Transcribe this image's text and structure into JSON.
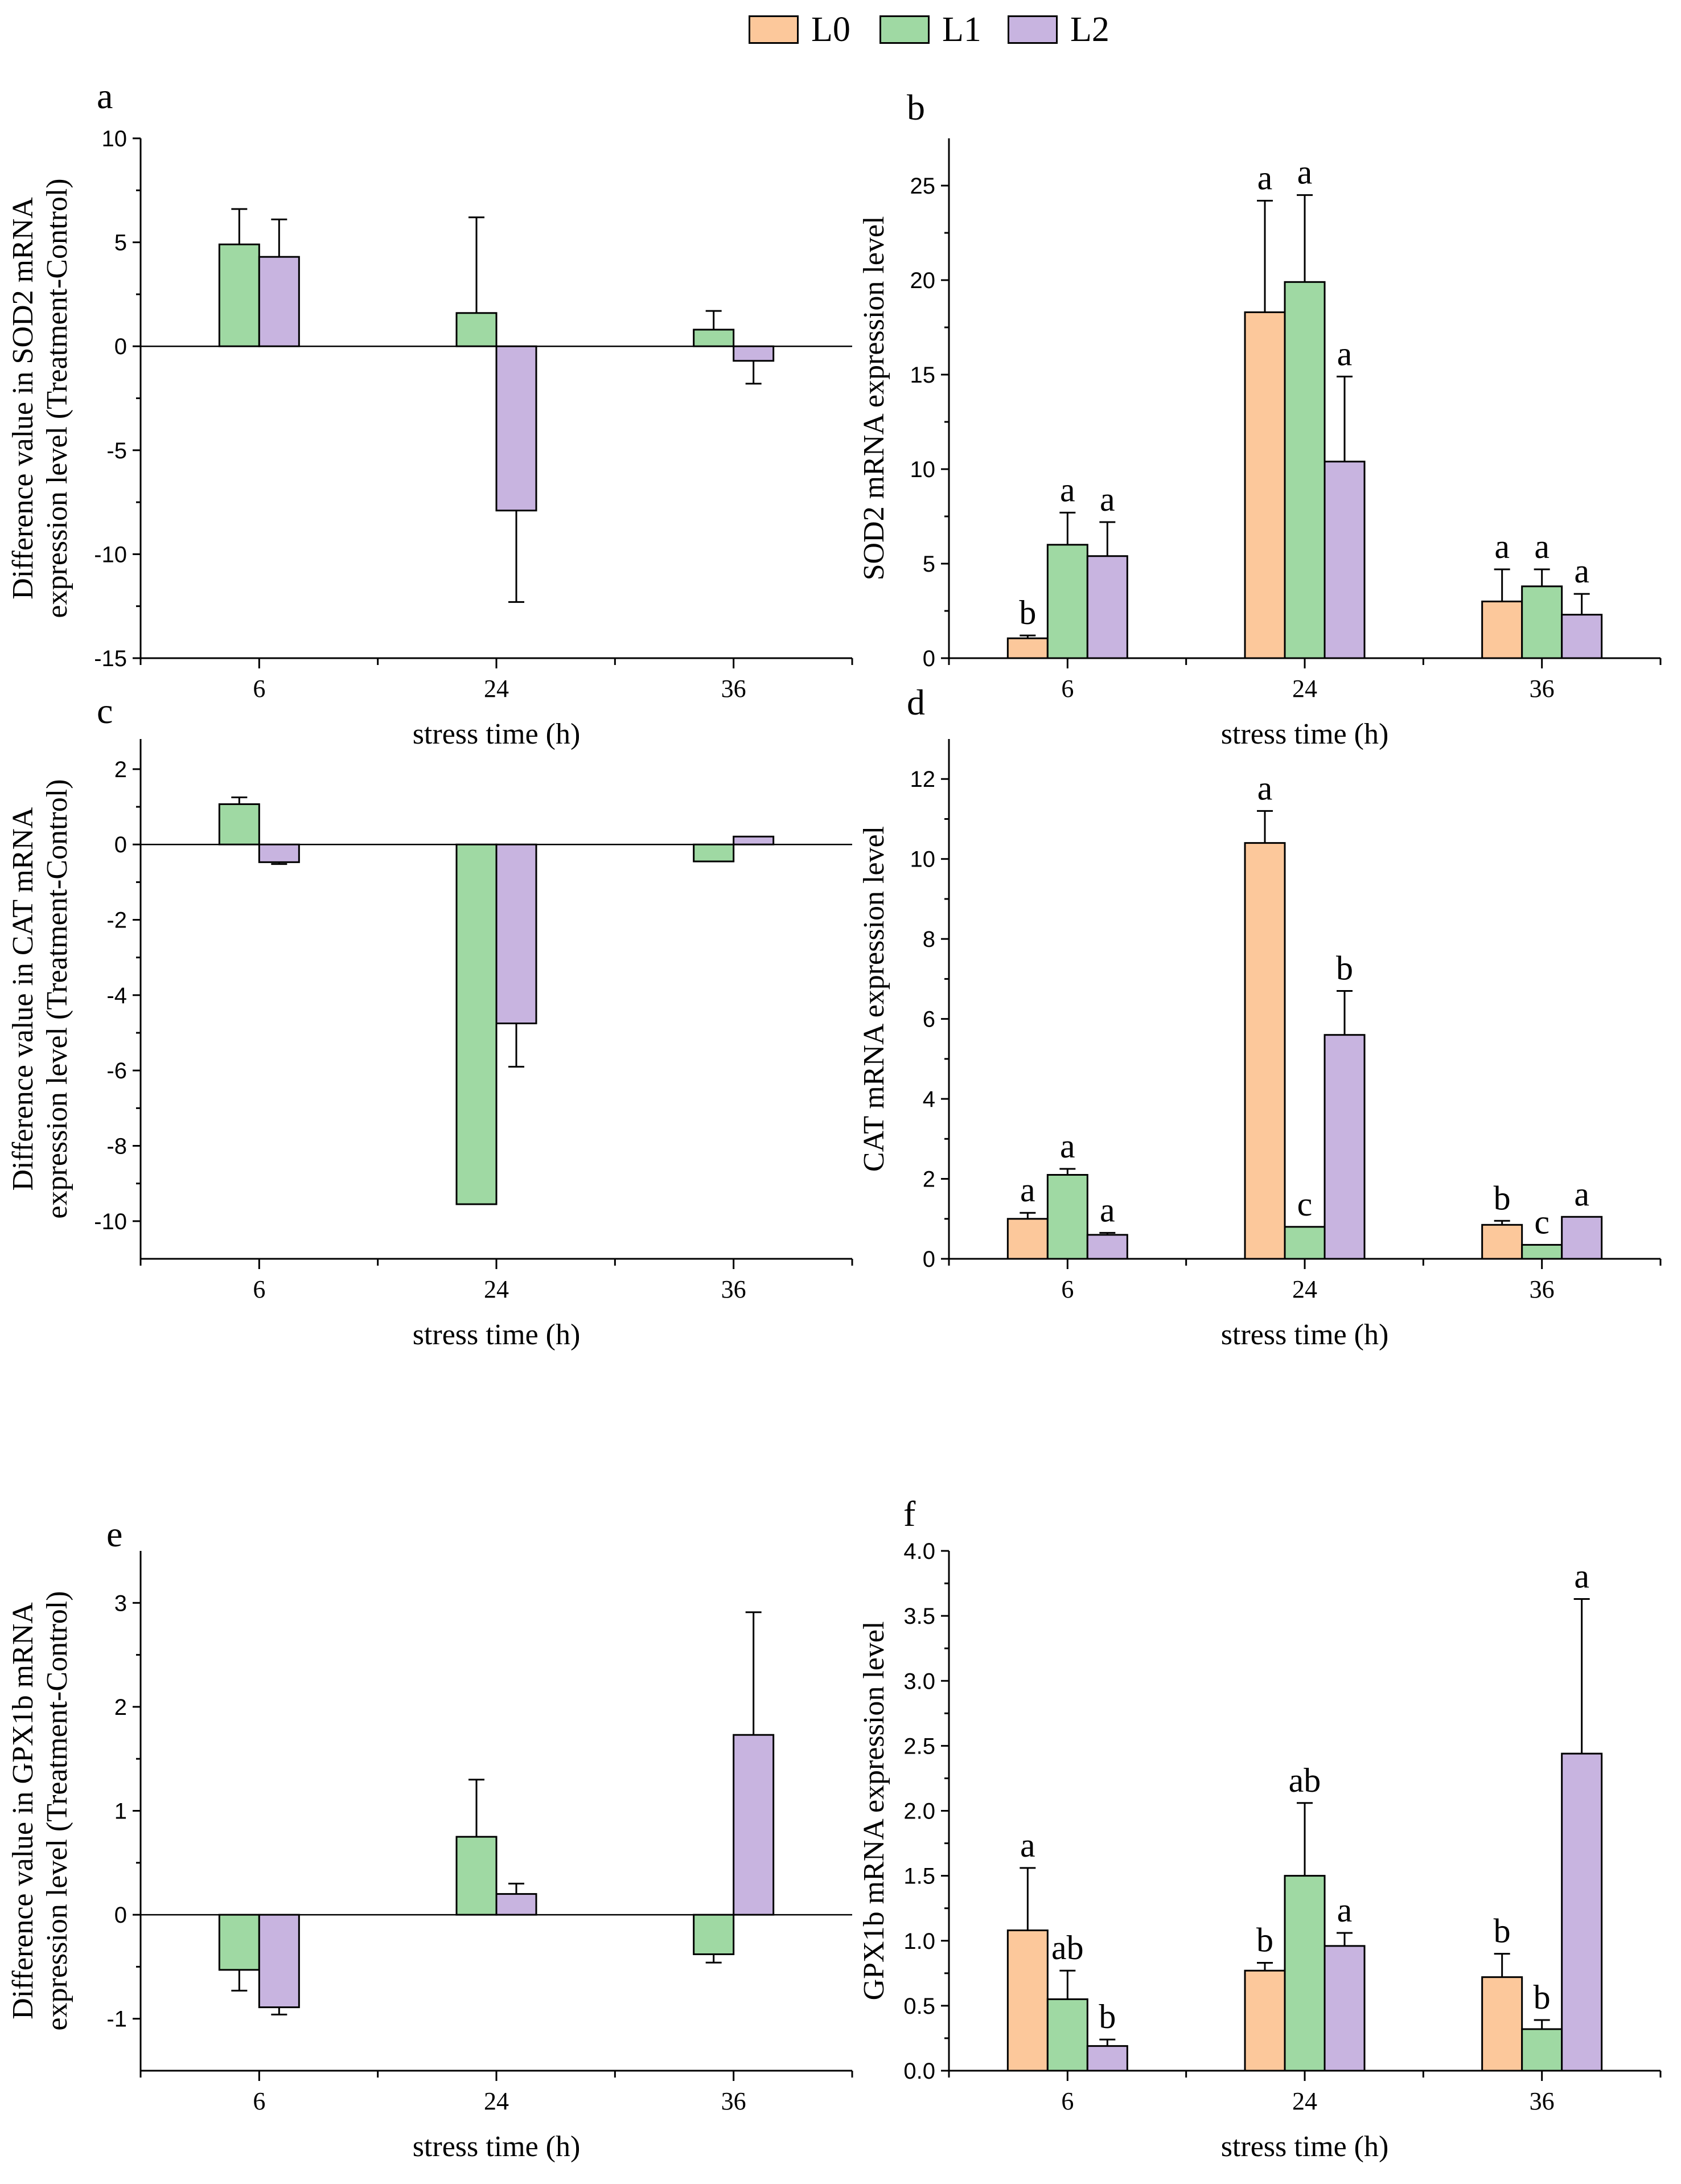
{
  "colors": {
    "L0": "#fcc89b",
    "L1": "#9fd9a3",
    "L2": "#c8b4e0",
    "error": "#000000"
  },
  "legend": [
    {
      "key": "L0",
      "label": "L0"
    },
    {
      "key": "L1",
      "label": "L1"
    },
    {
      "key": "L2",
      "label": "L2"
    }
  ],
  "chart_data": [
    {
      "id": "a",
      "type": "bar",
      "panel_label": "a",
      "ylabel_lines": [
        "Difference value in SOD2 mRNA",
        "expression level (Treatment-Control)"
      ],
      "xlabel": "stress time (h)",
      "categories": [
        "6",
        "24",
        "36"
      ],
      "ylim": [
        -15,
        10
      ],
      "yticks": [
        10,
        5,
        0,
        -5,
        -10,
        -15
      ],
      "ytick_labels": [
        "10",
        "5",
        "0",
        "-5",
        "-10",
        "-15"
      ],
      "zero_line": true,
      "series": [
        {
          "key": "L1",
          "name": "L1",
          "values": [
            4.9,
            1.6,
            0.8
          ],
          "errors": [
            1.7,
            4.6,
            0.9
          ],
          "labels": [
            "",
            "",
            ""
          ]
        },
        {
          "key": "L2",
          "name": "L2",
          "values": [
            4.3,
            -7.9,
            -0.7
          ],
          "errors": [
            1.8,
            4.4,
            1.1
          ],
          "labels": [
            "",
            "",
            ""
          ]
        }
      ]
    },
    {
      "id": "b",
      "type": "bar",
      "panel_label": "b",
      "ylabel_lines": [
        "SOD2 mRNA expression level"
      ],
      "xlabel": "stress time (h)",
      "categories": [
        "6",
        "24",
        "36"
      ],
      "ylim": [
        0,
        27.5
      ],
      "yticks": [
        0,
        5,
        10,
        15,
        20,
        25
      ],
      "ytick_labels": [
        "0",
        "5",
        "10",
        "15",
        "20",
        "25"
      ],
      "zero_line": false,
      "series": [
        {
          "key": "L0",
          "name": "L0",
          "values": [
            1.05,
            18.3,
            3.0
          ],
          "errors": [
            0.15,
            5.9,
            1.7
          ],
          "labels": [
            "b",
            "a",
            "a"
          ]
        },
        {
          "key": "L1",
          "name": "L1",
          "values": [
            6.0,
            19.9,
            3.8
          ],
          "errors": [
            1.7,
            4.6,
            0.9
          ],
          "labels": [
            "a",
            "a",
            "a"
          ]
        },
        {
          "key": "L2",
          "name": "L2",
          "values": [
            5.4,
            10.4,
            2.3
          ],
          "errors": [
            1.8,
            4.5,
            1.1
          ],
          "labels": [
            "a",
            "a",
            "a"
          ]
        }
      ]
    },
    {
      "id": "c",
      "type": "bar",
      "panel_label": "c",
      "ylabel_lines": [
        "Difference value in CAT mRNA",
        "expression level (Treatment-Control)"
      ],
      "xlabel": "stress time (h)",
      "categories": [
        "6",
        "24",
        "36"
      ],
      "ylim": [
        -11,
        2.8
      ],
      "yticks": [
        2,
        0,
        -2,
        -4,
        -6,
        -8,
        -10
      ],
      "ytick_labels": [
        "2",
        "0",
        "-2",
        "-4",
        "-6",
        "-8",
        "-10"
      ],
      "zero_line": true,
      "series": [
        {
          "key": "L1",
          "name": "L1",
          "values": [
            1.07,
            -9.55,
            -0.45
          ],
          "errors": [
            0.18,
            0.0,
            0.0
          ],
          "labels": [
            "",
            "",
            ""
          ]
        },
        {
          "key": "L2",
          "name": "L2",
          "values": [
            -0.47,
            -4.75,
            0.21
          ],
          "errors": [
            0.05,
            1.15,
            0.0
          ],
          "labels": [
            "",
            "",
            ""
          ]
        }
      ]
    },
    {
      "id": "d",
      "type": "bar",
      "panel_label": "d",
      "ylabel_lines": [
        "CAT mRNA expression level"
      ],
      "xlabel": "stress time (h)",
      "categories": [
        "6",
        "24",
        "36"
      ],
      "ylim": [
        0,
        13
      ],
      "yticks": [
        0,
        2,
        4,
        6,
        8,
        10,
        12
      ],
      "ytick_labels": [
        "0",
        "2",
        "4",
        "6",
        "8",
        "10",
        "12"
      ],
      "zero_line": false,
      "series": [
        {
          "key": "L0",
          "name": "L0",
          "values": [
            1.0,
            10.4,
            0.85
          ],
          "errors": [
            0.15,
            0.8,
            0.1
          ],
          "labels": [
            "a",
            "a",
            "b"
          ]
        },
        {
          "key": "L1",
          "name": "L1",
          "values": [
            2.1,
            0.8,
            0.35
          ],
          "errors": [
            0.15,
            0.0,
            0.0
          ],
          "labels": [
            "a",
            "c",
            "c"
          ]
        },
        {
          "key": "L2",
          "name": "L2",
          "values": [
            0.6,
            5.6,
            1.05
          ],
          "errors": [
            0.05,
            1.1,
            0.0
          ],
          "labels": [
            "a",
            "b",
            "a"
          ]
        }
      ]
    },
    {
      "id": "e",
      "type": "bar",
      "panel_label": "e",
      "ylabel_lines": [
        "Difference value in GPX1b mRNA",
        "expression level (Treatment-Control)"
      ],
      "xlabel": "stress time (h)",
      "categories": [
        "6",
        "24",
        "36"
      ],
      "ylim": [
        -1.5,
        3.5
      ],
      "yticks": [
        3,
        2,
        1,
        0,
        -1
      ],
      "ytick_labels": [
        "3",
        "2",
        "1",
        "0",
        "-1"
      ],
      "zero_line": true,
      "series": [
        {
          "key": "L1",
          "name": "L1",
          "values": [
            -0.53,
            0.75,
            -0.38
          ],
          "errors": [
            0.2,
            0.55,
            0.08
          ],
          "labels": [
            "",
            "",
            ""
          ]
        },
        {
          "key": "L2",
          "name": "L2",
          "values": [
            -0.89,
            0.2,
            1.73
          ],
          "errors": [
            0.07,
            0.1,
            1.18
          ],
          "labels": [
            "",
            "",
            ""
          ]
        }
      ]
    },
    {
      "id": "f",
      "type": "bar",
      "panel_label": "f",
      "ylabel_lines": [
        "GPX1b mRNA expression level"
      ],
      "xlabel": "stress time (h)",
      "categories": [
        "6",
        "24",
        "36"
      ],
      "ylim": [
        0,
        4.0
      ],
      "yticks": [
        0,
        0.5,
        1.0,
        1.5,
        2.0,
        2.5,
        3.0,
        3.5,
        4.0
      ],
      "ytick_labels": [
        "0.0",
        "0.5",
        "1.0",
        "1.5",
        "2.0",
        "2.5",
        "3.0",
        "3.5",
        "4.0"
      ],
      "zero_line": false,
      "series": [
        {
          "key": "L0",
          "name": "L0",
          "values": [
            1.08,
            0.77,
            0.72
          ],
          "errors": [
            0.48,
            0.06,
            0.18
          ],
          "labels": [
            "a",
            "b",
            "b"
          ]
        },
        {
          "key": "L1",
          "name": "L1",
          "values": [
            0.55,
            1.5,
            0.32
          ],
          "errors": [
            0.22,
            0.56,
            0.07
          ],
          "labels": [
            "ab",
            "ab",
            "b"
          ]
        },
        {
          "key": "L2",
          "name": "L2",
          "values": [
            0.19,
            0.96,
            2.44
          ],
          "errors": [
            0.05,
            0.1,
            1.19
          ],
          "labels": [
            "b",
            "a",
            "a"
          ]
        }
      ]
    }
  ]
}
